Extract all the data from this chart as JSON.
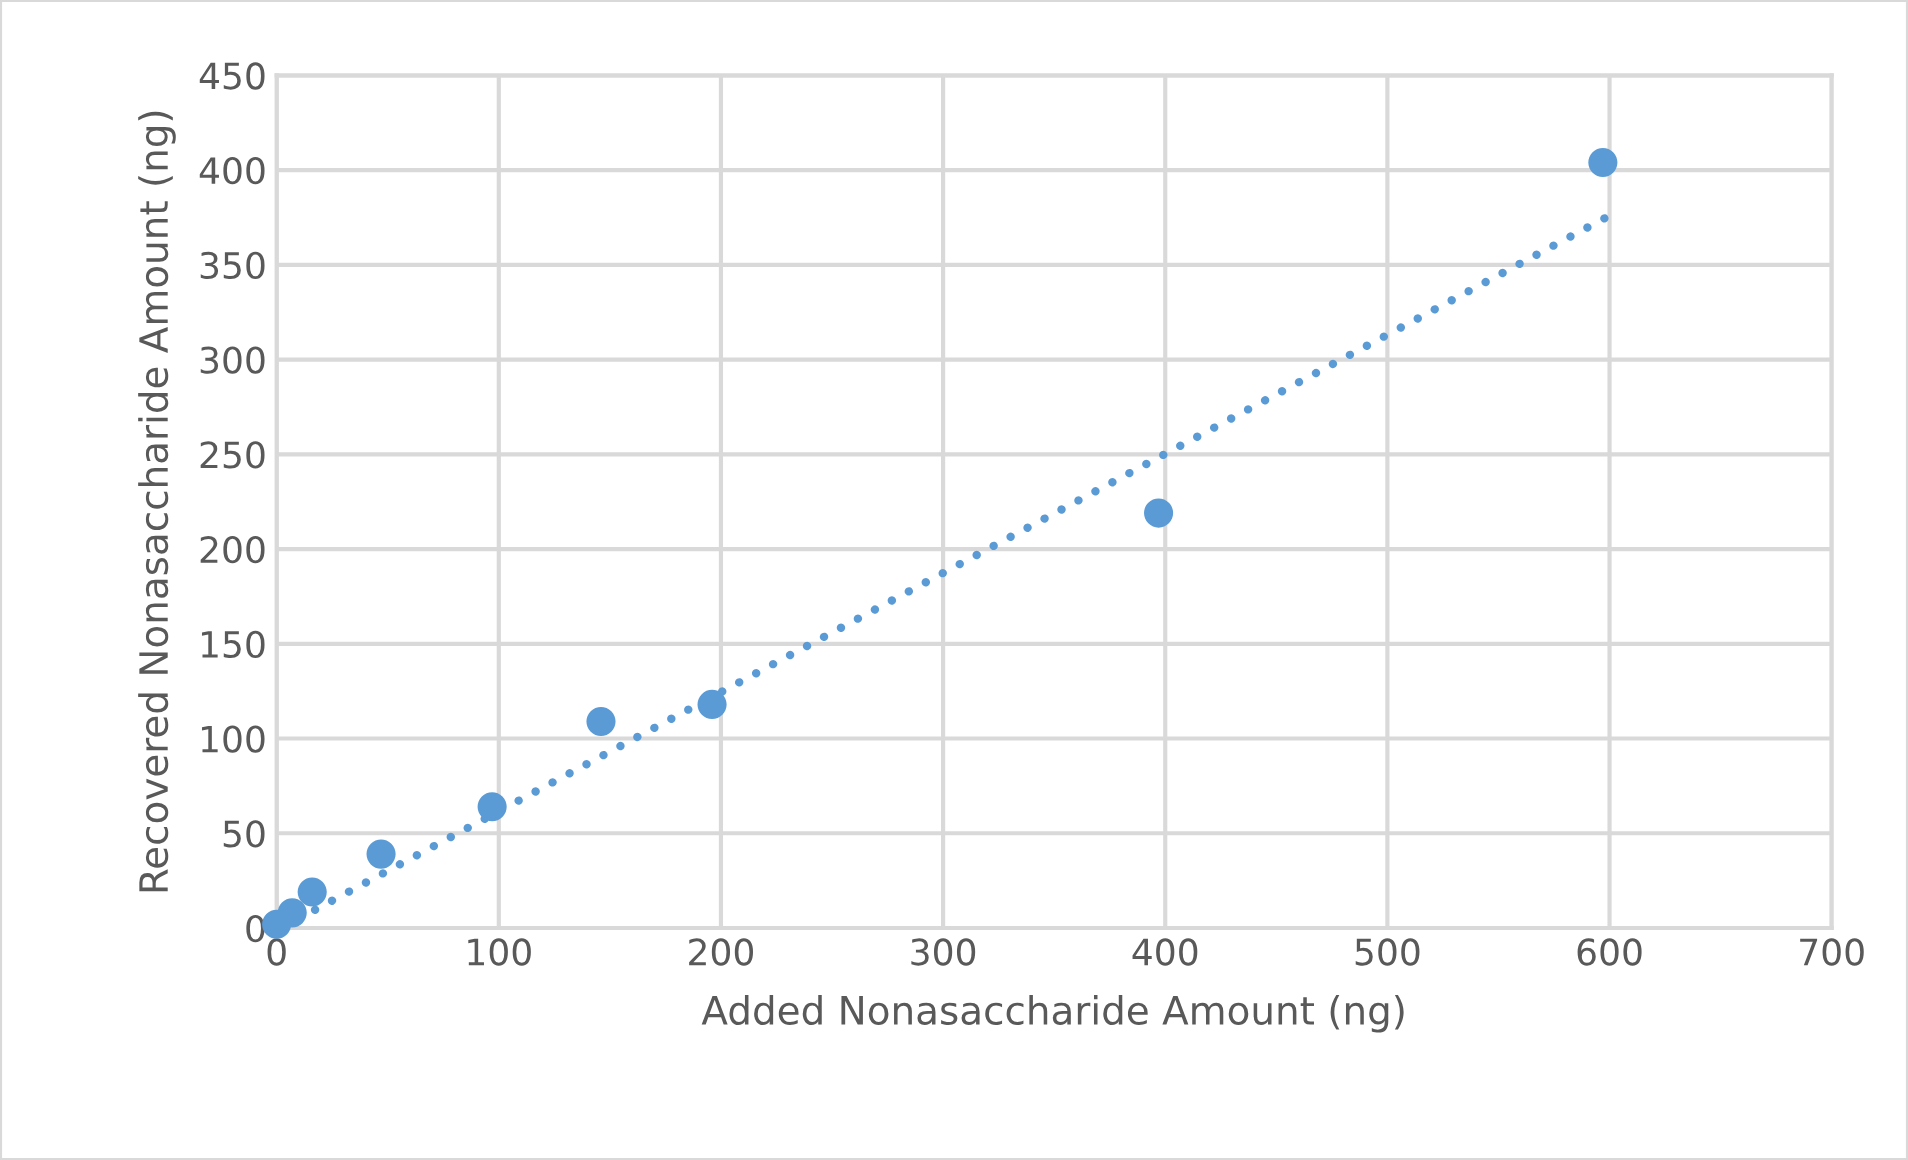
{
  "chart_data": {
    "type": "scatter",
    "xlabel": "Added Nonasaccharide Amount (ng)",
    "ylabel": "Recovered Nonasaccharide Amount (ng)",
    "series": [
      {
        "color": "#5b9bd5",
        "marker": "circle",
        "x": [
          0,
          7,
          16,
          47,
          97,
          146,
          196,
          397,
          597
        ],
        "values": [
          2,
          8,
          19,
          39,
          64,
          109,
          118,
          219,
          404
        ]
      },
      {
        "type": "line",
        "color": "#5b9bd5",
        "line_style": "dotted",
        "x": [
          2,
          600
        ],
        "values": [
          0,
          376
        ]
      }
    ],
    "xlim": [
      0,
      700
    ],
    "xticks": [
      0,
      100,
      200,
      300,
      400,
      500,
      600,
      700
    ],
    "ylim": [
      0,
      450
    ],
    "yticks": [
      0,
      50,
      100,
      150,
      200,
      250,
      300,
      350,
      400,
      450
    ],
    "grid": true
  }
}
